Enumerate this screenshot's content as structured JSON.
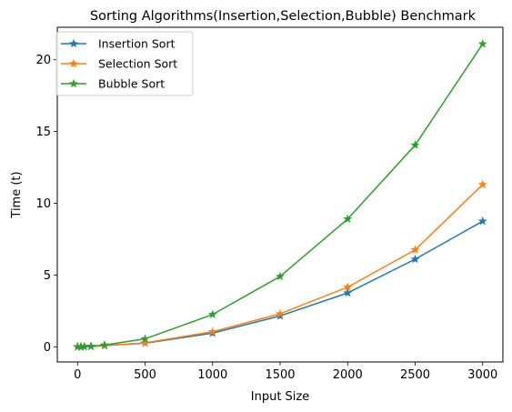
{
  "chart_data": {
    "type": "line",
    "title": "Sorting Algorithms(Insertion,Selection,Bubble) Benchmark",
    "xlabel": "Input Size",
    "ylabel": "Time (t)",
    "xlim": [
      -150,
      3150
    ],
    "ylim": [
      -1.06,
      22.26
    ],
    "xticks": [
      0,
      500,
      1000,
      1500,
      2000,
      2500,
      3000
    ],
    "yticks": [
      0,
      5,
      10,
      15,
      20
    ],
    "grid": false,
    "legend_position": "top-left",
    "marker": "star",
    "x": [
      0,
      25,
      50,
      100,
      200,
      500,
      1000,
      1500,
      2000,
      2500,
      3000
    ],
    "series": [
      {
        "name": "Insertion Sort",
        "color": "#1f77b4",
        "values": [
          0,
          0.002,
          0.006,
          0.02,
          0.08,
          0.25,
          0.95,
          2.15,
          3.75,
          6.1,
          8.75
        ]
      },
      {
        "name": "Selection Sort",
        "color": "#ff7f0e",
        "values": [
          0,
          0.002,
          0.007,
          0.025,
          0.09,
          0.27,
          1.05,
          2.3,
          4.15,
          6.75,
          11.3
        ]
      },
      {
        "name": "Bubble Sort",
        "color": "#2ca02c",
        "values": [
          0,
          0.004,
          0.012,
          0.04,
          0.12,
          0.55,
          2.25,
          4.9,
          8.9,
          14.05,
          21.1
        ]
      }
    ]
  }
}
